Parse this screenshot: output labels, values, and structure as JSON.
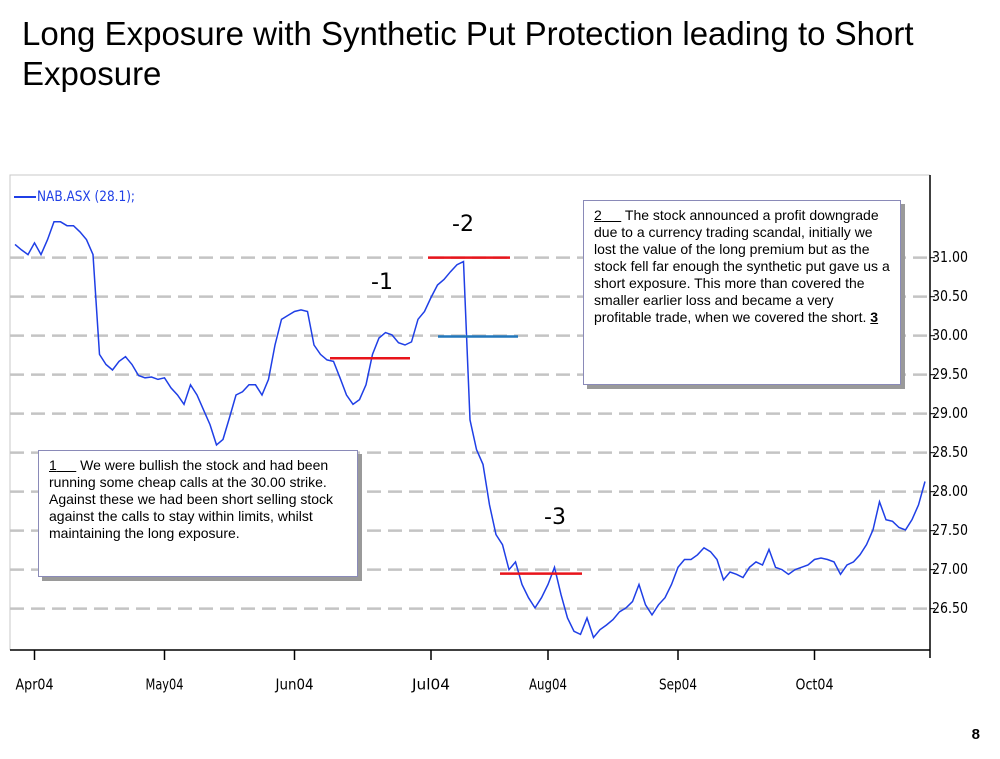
{
  "title": "Long Exposure with Synthetic Put Protection leading to Short Exposure",
  "page_number": "8",
  "chart_data": {
    "type": "line",
    "categories": [
      null,
      null,
      null,
      "Apr04",
      null,
      null,
      null,
      null,
      null,
      null,
      null,
      null,
      null,
      null,
      null,
      null,
      null,
      null,
      null,
      null,
      null,
      null,
      null,
      "May04",
      null,
      null,
      null,
      null,
      null,
      null,
      null,
      null,
      null,
      null,
      null,
      null,
      null,
      null,
      null,
      null,
      null,
      null,
      null,
      "Jun04",
      null,
      null,
      null,
      null,
      null,
      null,
      null,
      null,
      null,
      null,
      null,
      null,
      null,
      null,
      null,
      null,
      null,
      null,
      null,
      null,
      "Jul04",
      null,
      null,
      null,
      null,
      null,
      null,
      null,
      null,
      null,
      null,
      null,
      null,
      null,
      null,
      null,
      null,
      null,
      "Aug04",
      null,
      null,
      null,
      null,
      null,
      null,
      null,
      null,
      null,
      null,
      null,
      null,
      null,
      null,
      null,
      null,
      null,
      null,
      null,
      "Sep04",
      null,
      null,
      null,
      null,
      null,
      null,
      null,
      null,
      null,
      null,
      null,
      null,
      null,
      null,
      null,
      null,
      null,
      null,
      null,
      null,
      "Oct04",
      null,
      null,
      null,
      null,
      null,
      null,
      null,
      null,
      null,
      null,
      null,
      null,
      null,
      null,
      null,
      null,
      null
    ],
    "series": [
      {
        "name": "NAB.ASX (28.1);",
        "color": "#1f3fe6",
        "values": [
          31.17,
          31.1,
          31.04,
          31.19,
          31.04,
          31.23,
          31.46,
          31.46,
          31.41,
          31.41,
          31.33,
          31.23,
          31.04,
          29.76,
          29.63,
          29.56,
          29.67,
          29.73,
          29.63,
          29.49,
          29.46,
          29.47,
          29.44,
          29.46,
          29.33,
          29.24,
          29.12,
          29.37,
          29.24,
          29.05,
          28.86,
          28.6,
          28.67,
          28.95,
          29.24,
          29.28,
          29.37,
          29.37,
          29.24,
          29.44,
          29.88,
          30.21,
          30.26,
          30.31,
          30.33,
          30.31,
          29.88,
          29.76,
          29.69,
          29.67,
          29.46,
          29.24,
          29.12,
          29.18,
          29.37,
          29.76,
          29.97,
          30.04,
          30.01,
          29.91,
          29.88,
          29.92,
          30.21,
          30.31,
          30.49,
          30.65,
          30.72,
          30.82,
          30.91,
          30.95,
          28.92,
          28.54,
          28.35,
          27.83,
          27.45,
          27.32,
          27.0,
          27.1,
          26.81,
          26.64,
          26.51,
          26.64,
          26.81,
          27.03,
          26.68,
          26.38,
          26.21,
          26.17,
          26.38,
          26.13,
          26.23,
          26.29,
          26.36,
          26.46,
          26.51,
          26.59,
          26.81,
          26.55,
          26.42,
          26.55,
          26.64,
          26.81,
          27.03,
          27.13,
          27.13,
          27.19,
          27.28,
          27.23,
          27.13,
          26.87,
          26.97,
          26.94,
          26.9,
          27.03,
          27.1,
          27.06,
          27.26,
          27.03,
          27.0,
          26.94,
          27.0,
          27.03,
          27.06,
          27.13,
          27.15,
          27.13,
          27.1,
          26.94,
          27.06,
          27.1,
          27.19,
          27.32,
          27.51,
          27.87,
          27.64,
          27.62,
          27.54,
          27.51,
          27.64,
          27.83,
          28.13
        ]
      }
    ],
    "ylim": [
      25.97,
      32.06
    ],
    "yticks": [
      {
        "value": 26.5,
        "label": "26.50"
      },
      {
        "value": 27,
        "label": "27.00"
      },
      {
        "value": 27.5,
        "label": "27.50"
      },
      {
        "value": 28,
        "label": "28.00"
      },
      {
        "value": 28.5,
        "label": "28.50"
      },
      {
        "value": 29,
        "label": "29.00"
      },
      {
        "value": 29.5,
        "label": "29.50"
      },
      {
        "value": 30,
        "label": "30.00"
      },
      {
        "value": 30.5,
        "label": "30.50"
      },
      {
        "value": 31,
        "label": "31.00"
      }
    ],
    "grid": true,
    "levels": [
      {
        "label": "-1",
        "value": 29.71,
        "color": "#e8141b"
      },
      {
        "label": "-2",
        "value": 31.0,
        "color": "#e8141b"
      },
      {
        "value": 29.99,
        "color": "#2277bb"
      },
      {
        "label": "-3",
        "value": 26.95,
        "color": "#e8141b"
      }
    ],
    "annotations": [
      {
        "number": "1",
        "text": "We were bullish the stock and had been running some cheap calls at the 30.00 strike. Against these we had been short selling stock against the calls to stay within limits, whilst maintaining the long exposure."
      },
      {
        "number": "2",
        "text": "The stock announced a profit downgrade due to a currency trading scandal, initially we lost the value of the long premium but as the stock fell far enough the synthetic put gave us a short exposure. This more than covered the smaller earlier loss and became a very profitable trade, when we covered the short.",
        "end_number": "3"
      }
    ]
  }
}
